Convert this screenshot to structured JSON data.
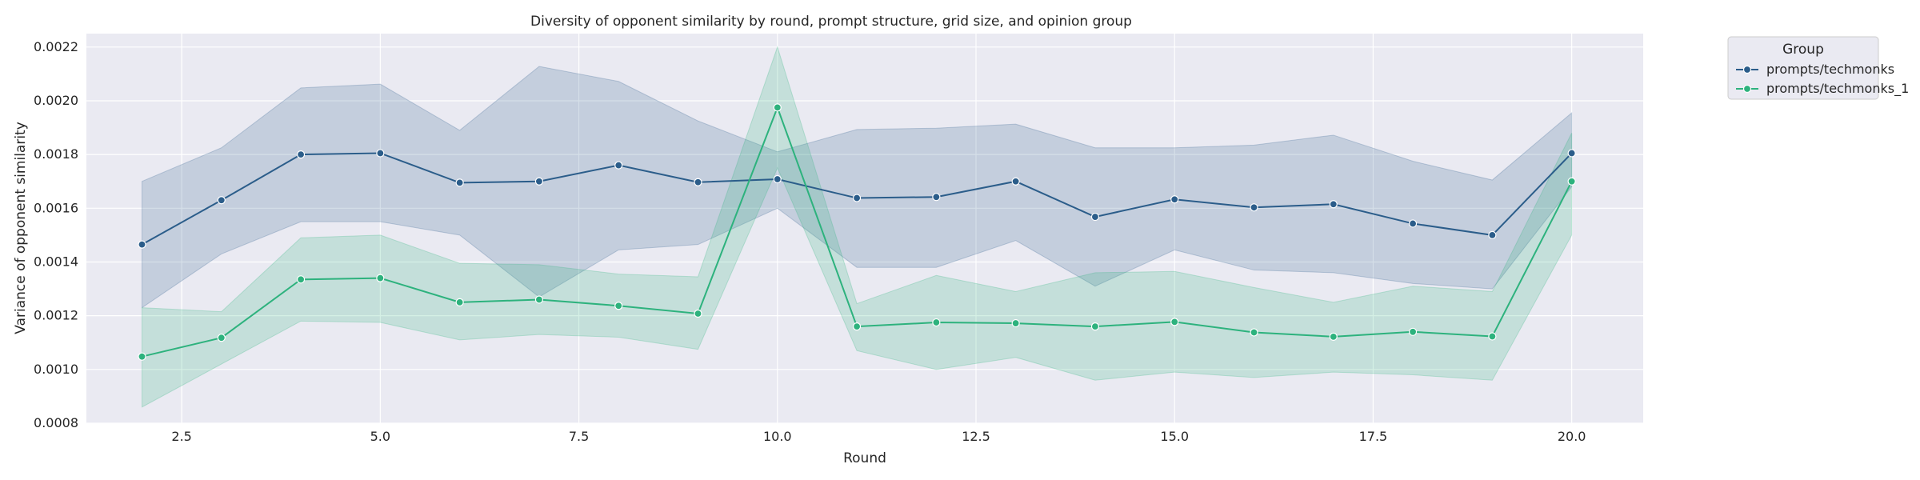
{
  "chart_data": {
    "type": "line",
    "title": "Diversity of opponent similarity by round, prompt structure, grid size, and opinion group",
    "xlabel": "Round",
    "ylabel": "Variance of opponent similarity",
    "xlim": [
      1.3,
      20.9
    ],
    "ylim": [
      0.0008,
      0.00225
    ],
    "xticks": [
      2.5,
      5.0,
      7.5,
      10.0,
      12.5,
      15.0,
      17.5,
      20.0
    ],
    "xtick_labels": [
      "2.5",
      "5.0",
      "7.5",
      "10.0",
      "12.5",
      "15.0",
      "17.5",
      "20.0"
    ],
    "yticks": [
      0.0008,
      0.001,
      0.0012,
      0.0014,
      0.0016,
      0.0018,
      0.002,
      0.0022
    ],
    "ytick_labels": [
      "0.0008",
      "0.0010",
      "0.0012",
      "0.0014",
      "0.0016",
      "0.0018",
      "0.0020",
      "0.0022"
    ],
    "grid": true,
    "background": "#eaeaf2",
    "legend": {
      "title": "Group",
      "placement": "outside-top-right"
    },
    "x": [
      2,
      3,
      4,
      5,
      6,
      7,
      8,
      9,
      10,
      11,
      12,
      13,
      14,
      15,
      16,
      17,
      18,
      19,
      20
    ],
    "series": [
      {
        "name": "prompts/techmonks",
        "color": "#2b5d8a",
        "values": [
          0.001465,
          0.00163,
          0.0018,
          0.001805,
          0.001695,
          0.0017,
          0.00176,
          0.001697,
          0.001708,
          0.001638,
          0.001642,
          0.0017,
          0.001568,
          0.001633,
          0.001603,
          0.001615,
          0.001543,
          0.0015,
          0.001805
        ],
        "lower": [
          0.00123,
          0.00143,
          0.00155,
          0.00155,
          0.0015,
          0.00127,
          0.001445,
          0.001465,
          0.0016,
          0.00138,
          0.00138,
          0.00148,
          0.00131,
          0.001445,
          0.00137,
          0.00136,
          0.00132,
          0.0013,
          0.00168
        ],
        "upper": [
          0.0017,
          0.001825,
          0.002048,
          0.002062,
          0.00189,
          0.002128,
          0.002072,
          0.001925,
          0.00181,
          0.001893,
          0.001898,
          0.001913,
          0.001825,
          0.001825,
          0.001835,
          0.001872,
          0.001775,
          0.001705,
          0.001955
        ]
      },
      {
        "name": "prompts/techmonks_1",
        "color": "#2db27d",
        "values": [
          0.001048,
          0.001118,
          0.001335,
          0.00134,
          0.00125,
          0.00126,
          0.001237,
          0.001208,
          0.001975,
          0.00116,
          0.001175,
          0.001172,
          0.00116,
          0.001177,
          0.001138,
          0.001122,
          0.00114,
          0.001123,
          0.0017
        ],
        "lower": [
          0.00086,
          0.00102,
          0.00118,
          0.001175,
          0.00111,
          0.00113,
          0.00112,
          0.001075,
          0.00175,
          0.00107,
          0.001,
          0.001045,
          0.00096,
          0.00099,
          0.00097,
          0.00099,
          0.00098,
          0.00096,
          0.0015
        ],
        "upper": [
          0.00123,
          0.001215,
          0.00149,
          0.0015,
          0.001395,
          0.00139,
          0.001355,
          0.001345,
          0.0022,
          0.001245,
          0.00135,
          0.00129,
          0.00136,
          0.001365,
          0.001305,
          0.00125,
          0.00131,
          0.00129,
          0.00188
        ]
      }
    ]
  }
}
